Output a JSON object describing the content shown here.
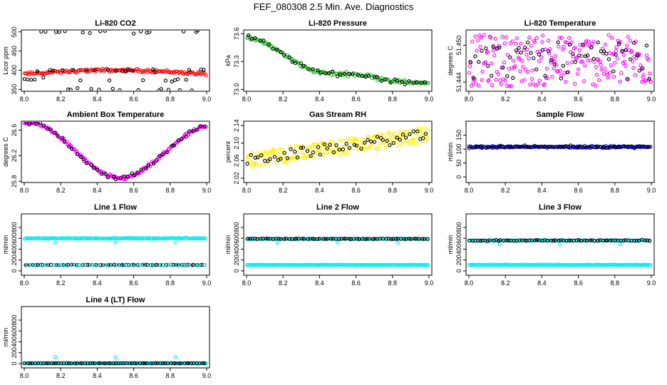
{
  "figure": {
    "title": "FEF_080308  2.5 Min. Ave. Diagnostics"
  },
  "chart_data": [
    {
      "type": "scatter",
      "title": "Li-820 CO2",
      "xlabel": "",
      "ylabel": "Licor ppm",
      "xlim": [
        8.0,
        9.0
      ],
      "ylim": [
        345,
        505
      ],
      "xticks": [
        "8.0",
        "8.2",
        "8.4",
        "8.6",
        "8.8",
        "9.0"
      ],
      "yticks": [
        "350",
        "400",
        "450",
        "500"
      ],
      "ytick_values": [
        350,
        400,
        450,
        500
      ],
      "series": [
        {
          "name": "co2-red",
          "color": "#ff0000",
          "gen": "co2red",
          "base": 390,
          "amp": 10,
          "noise": 2,
          "n": 140
        },
        {
          "name": "co2-black",
          "color": "#000000",
          "gen": "co2black",
          "levels": [
            350,
            375,
            400,
            500
          ],
          "n": 60
        }
      ]
    },
    {
      "type": "scatter",
      "title": "Li-820 Pressure",
      "xlabel": "",
      "ylabel": "kPa",
      "xlim": [
        8.0,
        9.0
      ],
      "ylim": [
        72.98,
        73.64
      ],
      "xticks": [
        "8.0",
        "8.2",
        "8.4",
        "8.6",
        "8.8",
        "9.0"
      ],
      "yticks": [
        "73.0",
        "73.3",
        "73.6"
      ],
      "ytick_values": [
        73.0,
        73.3,
        73.6
      ],
      "series": [
        {
          "name": "pressure-green",
          "color": "#22bb22",
          "gen": "pressure",
          "noise": 0.01,
          "n": 130
        },
        {
          "name": "pressure-black",
          "color": "#000000",
          "gen": "pressure",
          "noise": 0.012,
          "n": 45
        }
      ]
    },
    {
      "type": "scatter",
      "title": "Li-820 Temperature",
      "xlabel": "",
      "ylabel": "degrees C",
      "xlim": [
        8.0,
        9.0
      ],
      "ylim": [
        51.4425,
        51.4525
      ],
      "xticks": [
        "8.0",
        "8.2",
        "8.4",
        "8.6",
        "8.8",
        "9.0"
      ],
      "yticks": [
        "51.444",
        "51.450"
      ],
      "ytick_values": [
        51.444,
        51.45
      ],
      "series": [
        {
          "name": "temp-magenta",
          "color": "#ff00ff",
          "gen": "noiseband",
          "center": 51.4475,
          "spread": 0.0042,
          "n": 230
        },
        {
          "name": "temp-black",
          "color": "#000000",
          "gen": "noiseband",
          "center": 51.4475,
          "spread": 0.003,
          "n": 60
        }
      ]
    },
    {
      "type": "scatter",
      "title": "Ambient Box Temperature",
      "xlabel": "",
      "ylabel": "degrees C",
      "xlim": [
        8.0,
        9.0
      ],
      "ylim": [
        25.78,
        26.74
      ],
      "xticks": [
        "8.0",
        "8.2",
        "8.4",
        "8.6",
        "8.8",
        "9.0"
      ],
      "yticks": [
        "25.8",
        "26.2",
        "26.6"
      ],
      "ytick_values": [
        25.8,
        26.2,
        26.6
      ],
      "series": [
        {
          "name": "box-magenta",
          "color": "#ff00ff",
          "gen": "ambient",
          "noise": 0.015,
          "n": 160
        },
        {
          "name": "box-black",
          "color": "#000000",
          "gen": "ambient",
          "noise": 0.02,
          "n": 50
        }
      ]
    },
    {
      "type": "scatter",
      "title": "Gas Stream RH",
      "xlabel": "",
      "ylabel": "percent",
      "xlim": [
        8.0,
        9.0
      ],
      "ylim": [
        2.01,
        2.15
      ],
      "xticks": [
        "8.0",
        "8.2",
        "8.4",
        "8.6",
        "8.8",
        "9.0"
      ],
      "yticks": [
        "2.02",
        "2.06",
        "2.10",
        "2.14"
      ],
      "ytick_values": [
        2.02,
        2.06,
        2.1,
        2.14
      ],
      "series": [
        {
          "name": "rh-yellow",
          "color": "#ffee00",
          "gen": "rh",
          "spread": 0.018,
          "n": 200
        },
        {
          "name": "rh-black",
          "color": "#000000",
          "gen": "rh",
          "spread": 0.012,
          "n": 55
        }
      ]
    },
    {
      "type": "scatter",
      "title": "Sample Flow",
      "xlabel": "",
      "ylabel": "ml/min",
      "xlim": [
        8.0,
        9.0
      ],
      "ylim": [
        -20,
        200
      ],
      "xticks": [
        "8.0",
        "8.2",
        "8.4",
        "8.6",
        "8.8",
        "9.0"
      ],
      "yticks": [
        "0",
        "50",
        "100",
        "150"
      ],
      "ytick_values": [
        0,
        50,
        100,
        150
      ],
      "series": [
        {
          "name": "sample-blue",
          "color": "#0000ff",
          "gen": "flat",
          "value": 108,
          "noise": 1.5,
          "n": 150
        },
        {
          "name": "sample-black",
          "color": "#000000",
          "gen": "flat",
          "value": 108,
          "noise": 2,
          "n": 70
        }
      ]
    },
    {
      "type": "scatter",
      "title": "Line 1 Flow",
      "xlabel": "",
      "ylabel": "ml/min",
      "xlim": [
        8.0,
        9.0
      ],
      "ylim": [
        -80,
        1050
      ],
      "xticks": [
        "8.0",
        "8.2",
        "8.4",
        "8.6",
        "8.8",
        "9.0"
      ],
      "yticks": [
        "0",
        "200",
        "400",
        "600",
        "800"
      ],
      "ytick_values": [
        0,
        200,
        400,
        600,
        800
      ],
      "series": [
        {
          "name": "line1-cyan",
          "color": "#00eeee",
          "gen": "flat",
          "value": 600,
          "noise": 4,
          "n": 150,
          "dips": [
            [
              8.17,
              520
            ],
            [
              8.5,
              520
            ],
            [
              8.83,
              520
            ]
          ]
        },
        {
          "name": "line1-black",
          "color": "#000000",
          "gen": "flat",
          "value": 110,
          "noise": 2,
          "n": 70
        },
        {
          "name": "line1-cyan-low",
          "color": "#00eeee",
          "gen": "flat",
          "value": 110,
          "noise": 2,
          "n": 40
        }
      ]
    },
    {
      "type": "scatter",
      "title": "Line 2 Flow",
      "xlabel": "",
      "ylabel": "ml/min",
      "xlim": [
        8.0,
        9.0
      ],
      "ylim": [
        -80,
        1050
      ],
      "xticks": [
        "8.0",
        "8.2",
        "8.4",
        "8.6",
        "8.8",
        "9.0"
      ],
      "yticks": [
        "0",
        "200",
        "400",
        "600",
        "800"
      ],
      "ytick_values": [
        0,
        200,
        400,
        600,
        800
      ],
      "series": [
        {
          "name": "line2-cyan-high",
          "color": "#00eeee",
          "gen": "flat",
          "value": 590,
          "noise": 3,
          "n": 100,
          "dips": [
            [
              8.17,
              520
            ],
            [
              8.5,
              520
            ],
            [
              8.83,
              520
            ]
          ]
        },
        {
          "name": "line2-black",
          "color": "#000000",
          "gen": "flat",
          "value": 590,
          "noise": 3,
          "n": 70
        },
        {
          "name": "line2-cyan-low",
          "color": "#00eeee",
          "gen": "flat",
          "value": 110,
          "noise": 2,
          "n": 170
        }
      ]
    },
    {
      "type": "scatter",
      "title": "Line 3 Flow",
      "xlabel": "",
      "ylabel": "ml/min",
      "xlim": [
        8.0,
        9.0
      ],
      "ylim": [
        -80,
        1050
      ],
      "xticks": [
        "8.0",
        "8.2",
        "8.4",
        "8.6",
        "8.8",
        "9.0"
      ],
      "yticks": [
        "0",
        "200",
        "400",
        "600",
        "800"
      ],
      "ytick_values": [
        0,
        200,
        400,
        600,
        800
      ],
      "series": [
        {
          "name": "line3-cyan-high",
          "color": "#00eeee",
          "gen": "flat",
          "value": 560,
          "noise": 4,
          "n": 100,
          "dips": [
            [
              8.17,
              490
            ],
            [
              8.5,
              490
            ],
            [
              8.83,
              490
            ]
          ]
        },
        {
          "name": "line3-black",
          "color": "#000000",
          "gen": "flat",
          "value": 560,
          "noise": 5,
          "n": 70
        },
        {
          "name": "line3-cyan-low",
          "color": "#00eeee",
          "gen": "flat",
          "value": 110,
          "noise": 3,
          "n": 170
        }
      ]
    },
    {
      "type": "scatter",
      "title": "Line 4 (LT) Flow",
      "xlabel": "",
      "ylabel": "ml/min",
      "xlim": [
        8.0,
        9.0
      ],
      "ylim": [
        -80,
        1050
      ],
      "xticks": [
        "8.0",
        "8.2",
        "8.4",
        "8.6",
        "8.8",
        "9.0"
      ],
      "yticks": [
        "0",
        "200",
        "400",
        "600",
        "800"
      ],
      "ytick_values": [
        0,
        200,
        400,
        600,
        800
      ],
      "series": [
        {
          "name": "line4-cyan",
          "color": "#00eeee",
          "gen": "flat",
          "value": 5,
          "noise": 1,
          "n": 150,
          "dips": [
            [
              8.17,
              120
            ],
            [
              8.5,
              120
            ],
            [
              8.83,
              120
            ]
          ]
        },
        {
          "name": "line4-black",
          "color": "#000000",
          "gen": "flat",
          "value": 5,
          "noise": 1,
          "n": 70
        }
      ]
    }
  ]
}
